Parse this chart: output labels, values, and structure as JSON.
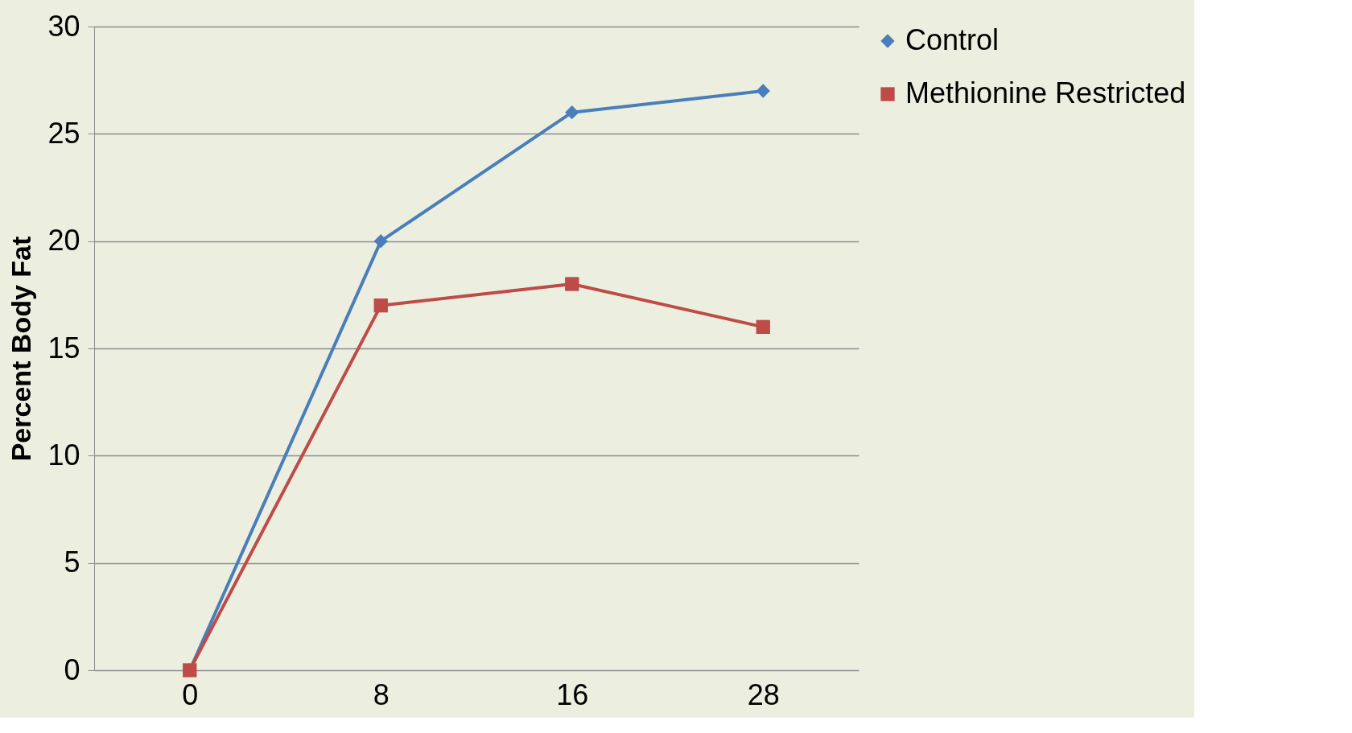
{
  "chart_data": {
    "type": "line",
    "ylabel": "Percent Body Fat",
    "categories": [
      "0",
      "8",
      "16",
      "28"
    ],
    "series": [
      {
        "name": "Control",
        "color": "#4a7ebb",
        "marker": "diamond",
        "values": [
          0,
          20,
          26,
          27
        ]
      },
      {
        "name": "Methionine Restricted",
        "color": "#be4b48",
        "marker": "square",
        "values": [
          0,
          17,
          18,
          16
        ]
      }
    ],
    "ylim": [
      0,
      30
    ],
    "yticks": [
      0,
      5,
      10,
      15,
      20,
      25,
      30
    ],
    "grid": "y",
    "legend": "right",
    "line_style": "solid"
  }
}
